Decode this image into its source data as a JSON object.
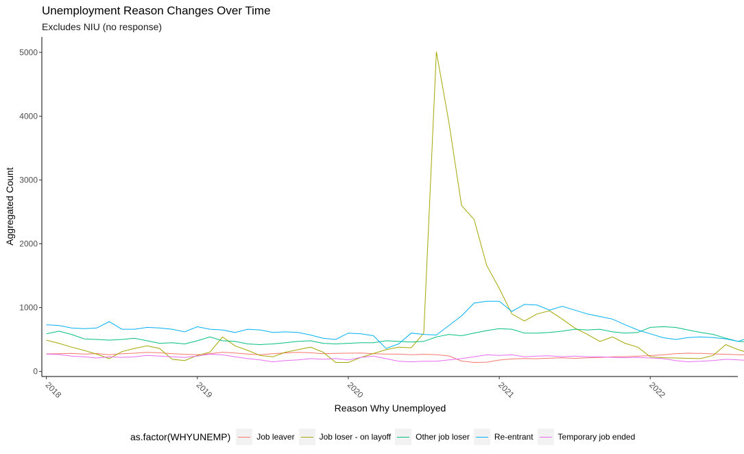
{
  "chart_data": {
    "type": "line",
    "title": "Unemployment Reason Changes Over Time",
    "subtitle": "Excludes NIU (no response)",
    "xlabel": "Reason Why Unemployed",
    "ylabel": "Aggregated Count",
    "xlim": [
      2017.97,
      2022.58
    ],
    "ylim": [
      -80,
      5240
    ],
    "x_ticks": [
      2018,
      2019,
      2020,
      2021,
      2022
    ],
    "x_tick_labels": [
      "2018",
      "2019",
      "2020",
      "2021",
      "2022"
    ],
    "y_ticks": [
      0,
      1000,
      2000,
      3000,
      4000,
      5000
    ],
    "y_tick_labels": [
      "0",
      "1000",
      "2000",
      "3000",
      "4000",
      "5000"
    ],
    "grid": false,
    "legend_title": "as.factor(WHYUNEMP)",
    "legend_position": "bottom",
    "x_start_year": 2018,
    "series": [
      {
        "name": "Job leaver",
        "color": "#F8766D",
        "values": [
          275,
          278,
          282,
          270,
          280,
          262,
          278,
          285,
          298,
          292,
          278,
          268,
          262,
          278,
          300,
          288,
          272,
          262,
          278,
          290,
          298,
          292,
          278,
          282,
          285,
          288,
          278,
          272,
          270,
          262,
          268,
          262,
          242,
          162,
          140,
          145,
          178,
          195,
          202,
          198,
          208,
          212,
          205,
          212,
          218,
          228,
          232,
          238,
          248,
          260,
          278,
          285,
          282,
          275,
          268,
          262,
          255,
          248,
          240,
          252,
          262,
          240,
          218,
          195,
          205,
          215,
          225
        ]
      },
      {
        "name": "Job loser - on layoff",
        "color": "#A3A500",
        "values": [
          490,
          440,
          380,
          330,
          270,
          200,
          310,
          360,
          400,
          360,
          190,
          170,
          250,
          300,
          540,
          400,
          330,
          250,
          230,
          300,
          340,
          380,
          300,
          140,
          140,
          220,
          280,
          340,
          380,
          370,
          600,
          5010,
          3900,
          2600,
          2380,
          1660,
          1300,
          900,
          790,
          900,
          950,
          820,
          680,
          580,
          470,
          540,
          440,
          380,
          230,
          215,
          210,
          205,
          200,
          250,
          420,
          340,
          280,
          230,
          200,
          165,
          225
        ]
      },
      {
        "name": "Other job loser",
        "color": "#00BF7D",
        "values": [
          590,
          630,
          580,
          510,
          500,
          490,
          500,
          520,
          480,
          440,
          450,
          430,
          480,
          540,
          480,
          470,
          430,
          420,
          430,
          450,
          470,
          480,
          440,
          430,
          440,
          450,
          450,
          480,
          470,
          460,
          470,
          540,
          580,
          560,
          600,
          640,
          670,
          660,
          600,
          600,
          610,
          630,
          660,
          650,
          660,
          620,
          600,
          610,
          690,
          700,
          690,
          650,
          610,
          580,
          520,
          470,
          460,
          420,
          380,
          360,
          350,
          350
        ]
      },
      {
        "name": "Re-entrant",
        "color": "#00B0F6",
        "values": [
          730,
          720,
          680,
          670,
          680,
          780,
          660,
          660,
          690,
          680,
          660,
          620,
          700,
          660,
          650,
          610,
          660,
          650,
          610,
          620,
          610,
          570,
          520,
          500,
          600,
          590,
          560,
          360,
          430,
          600,
          580,
          570,
          720,
          870,
          1070,
          1100,
          1100,
          940,
          1050,
          1040,
          960,
          1020,
          960,
          900,
          860,
          820,
          730,
          650,
          590,
          530,
          500,
          530,
          540,
          530,
          510,
          470,
          540,
          600
        ]
      },
      {
        "name": "Temporary job ended",
        "color": "#E76BF3",
        "values": [
          270,
          265,
          240,
          230,
          210,
          230,
          220,
          230,
          250,
          240,
          230,
          220,
          240,
          270,
          260,
          230,
          200,
          180,
          150,
          170,
          180,
          200,
          190,
          200,
          180,
          220,
          240,
          200,
          160,
          150,
          160,
          160,
          180,
          200,
          230,
          260,
          250,
          260,
          230,
          240,
          245,
          230,
          240,
          230,
          230,
          220,
          215,
          220,
          210,
          200,
          170,
          150,
          160,
          170,
          190,
          180,
          170,
          150,
          140,
          130
        ]
      }
    ]
  }
}
